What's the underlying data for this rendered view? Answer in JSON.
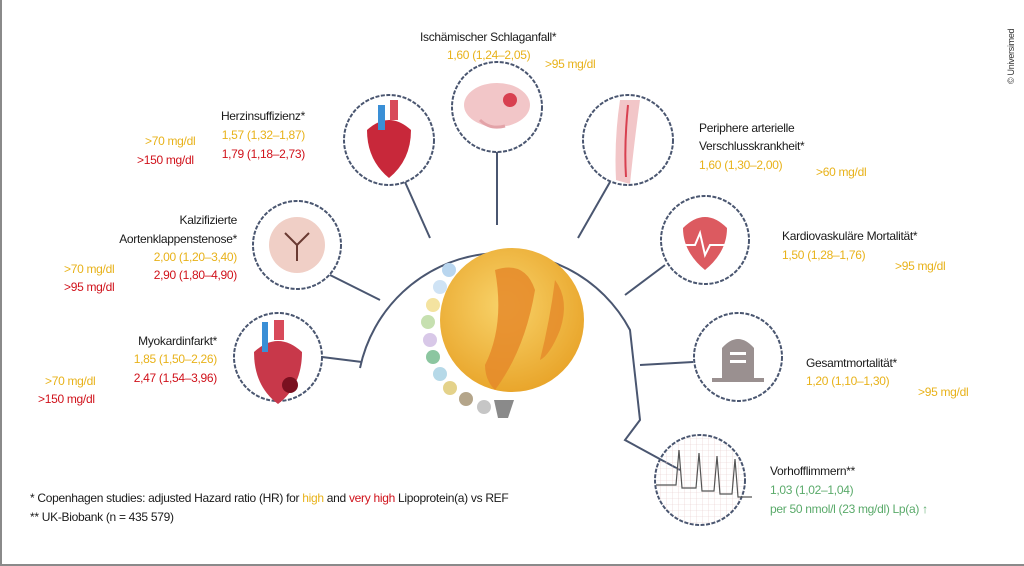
{
  "colors": {
    "high": "#e8b21a",
    "very_high": "#d0121b",
    "green": "#5aaa6a",
    "line": "#4a5670"
  },
  "copyright": "© Universimed",
  "outcomes": {
    "stroke": {
      "title": "Ischämischer Schlaganfall*",
      "hr_high": "1,60 (1,24–2,05)",
      "threshold_high": ">95 mg/dl",
      "icon": "brain-icon"
    },
    "heart_failure": {
      "title": "Herzinsuffizienz*",
      "hr_high": "1,57 (1,32–1,87)",
      "hr_very_high": "1,79 (1,18–2,73)",
      "threshold_high": ">70 mg/dl",
      "threshold_very_high": ">150 mg/dl",
      "icon": "heart-icon"
    },
    "aortic_stenosis": {
      "title_line1": "Kalzifizierte",
      "title_line2": "Aortenklappenstenose*",
      "hr_high": "2,00 (1,20–3,40)",
      "hr_very_high": "2,90 (1,80–4,90)",
      "threshold_high": ">70 mg/dl",
      "threshold_very_high": ">95 mg/dl",
      "icon": "aortic-valve-icon"
    },
    "myocardial_infarction": {
      "title": "Myokardinfarkt*",
      "hr_high": "1,85 (1,50–2,26)",
      "hr_very_high": "2,47 (1,54–3,96)",
      "threshold_high": ">70 mg/dl",
      "threshold_very_high": ">150 mg/dl",
      "icon": "infarct-heart-icon"
    },
    "pad": {
      "title_line1": "Periphere arterielle",
      "title_line2": "Verschlusskrankheit*",
      "hr_high": "1,60 (1,30–2,00)",
      "threshold_high": ">60 mg/dl",
      "icon": "leg-artery-icon"
    },
    "cv_mortality": {
      "title": "Kardiovaskuläre Mortalität*",
      "hr_high": "1,50 (1,28–1,76)",
      "threshold_high": ">95 mg/dl",
      "icon": "heart-pulse-icon"
    },
    "total_mortality": {
      "title": "Gesamtmortalität*",
      "hr_high": "1,20 (1,10–1,30)",
      "threshold_high": ">95 mg/dl",
      "icon": "gravestone-icon"
    },
    "afib": {
      "title": "Vorhofflimmern**",
      "hr": "1,03 (1,02–1,04)",
      "per": "per 50 nmol/l (23 mg/dl) Lp(a) ↑",
      "icon": "ecg-icon"
    }
  },
  "footnotes": {
    "f1_prefix": "* Copenhagen studies: adjusted Hazard ratio (HR) for ",
    "f1_high": "high",
    "f1_and": " and ",
    "f1_very_high": "very high",
    "f1_suffix": " Lipoprotein(a) vs REF",
    "f2": "** UK-Biobank (n = 435 579)"
  }
}
